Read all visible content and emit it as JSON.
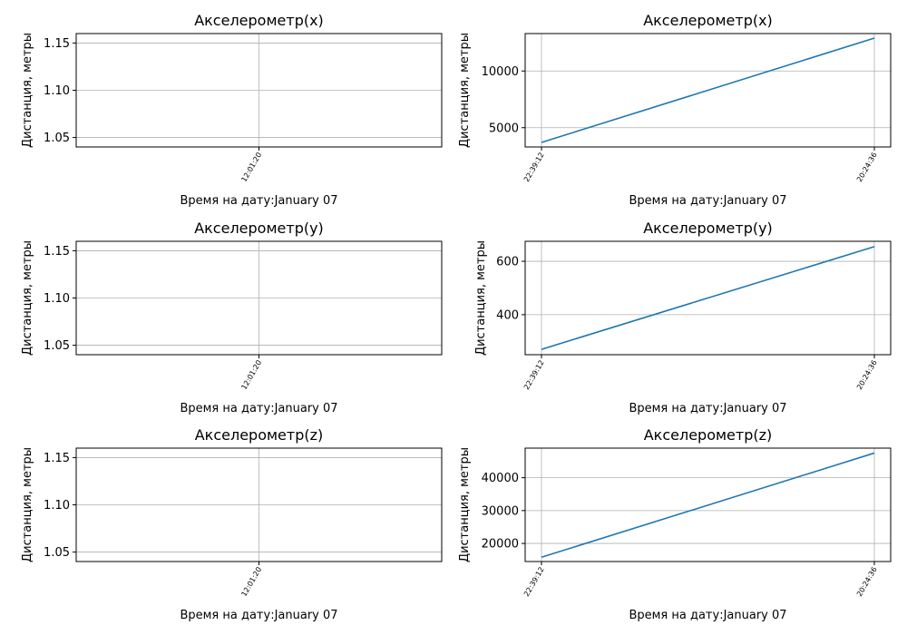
{
  "colors": {
    "series": "#1f77b4",
    "grid": "#b0b0b0"
  },
  "chart_data": [
    {
      "type": "line",
      "title": "Акселерометр(x)",
      "xlabel": "Время на дату:January 07",
      "ylabel": "Дистанция, метры",
      "ylim": [
        1.04,
        1.16
      ],
      "yticks": [
        1.05,
        1.1,
        1.15
      ],
      "ytick_labels": [
        "1.05",
        "1.10",
        "1.15"
      ],
      "xticks": [
        "12:01:20"
      ],
      "grid": true,
      "series": [
        {
          "x": [],
          "values": []
        }
      ]
    },
    {
      "type": "line",
      "title": "Акселерометр(x)",
      "xlabel": "Время на дату:January 07",
      "ylabel": "Дистанция, метры",
      "ylim": [
        3300,
        13300
      ],
      "yticks": [
        5000,
        10000
      ],
      "ytick_labels": [
        "5000",
        "10000"
      ],
      "xticks": [
        "22:39:12",
        "20:24:36"
      ],
      "grid": true,
      "series": [
        {
          "x": [
            "22:39:12",
            "20:24:36"
          ],
          "values": [
            3700,
            12900
          ]
        }
      ]
    },
    {
      "type": "line",
      "title": "Акселерометр(y)",
      "xlabel": "Время на дату:January 07",
      "ylabel": "Дистанция, метры",
      "ylim": [
        1.04,
        1.16
      ],
      "yticks": [
        1.05,
        1.1,
        1.15
      ],
      "ytick_labels": [
        "1.05",
        "1.10",
        "1.15"
      ],
      "xticks": [
        "12:01:20"
      ],
      "grid": true,
      "series": [
        {
          "x": [],
          "values": []
        }
      ]
    },
    {
      "type": "line",
      "title": "Акселерометр(y)",
      "xlabel": "Время на дату:January 07",
      "ylabel": "Дистанция, метры",
      "ylim": [
        250,
        675
      ],
      "yticks": [
        400,
        600
      ],
      "ytick_labels": [
        "400",
        "600"
      ],
      "xticks": [
        "22:39:12",
        "20:24:36"
      ],
      "grid": true,
      "series": [
        {
          "x": [
            "22:39:12",
            "20:24:36"
          ],
          "values": [
            270,
            655
          ]
        }
      ]
    },
    {
      "type": "line",
      "title": "Акселерометр(z)",
      "xlabel": "Время на дату:January 07",
      "ylabel": "Дистанция, метры",
      "ylim": [
        1.04,
        1.16
      ],
      "yticks": [
        1.05,
        1.1,
        1.15
      ],
      "ytick_labels": [
        "1.05",
        "1.10",
        "1.15"
      ],
      "xticks": [
        "12:01:20"
      ],
      "grid": true,
      "series": [
        {
          "x": [],
          "values": []
        }
      ]
    },
    {
      "type": "line",
      "title": "Акселерометр(z)",
      "xlabel": "Время на дату:January 07",
      "ylabel": "Дистанция, метры",
      "ylim": [
        14500,
        49000
      ],
      "yticks": [
        20000,
        30000,
        40000
      ],
      "ytick_labels": [
        "20000",
        "30000",
        "40000"
      ],
      "xticks": [
        "22:39:12",
        "20:24:36"
      ],
      "grid": true,
      "series": [
        {
          "x": [
            "22:39:12",
            "20:24:36"
          ],
          "values": [
            15800,
            47500
          ]
        }
      ]
    }
  ]
}
